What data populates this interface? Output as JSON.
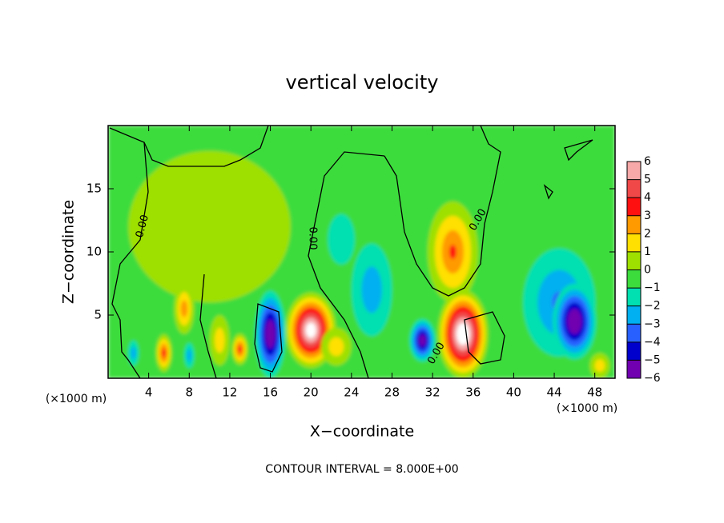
{
  "chart_data": {
    "type": "contour",
    "title": "vertical velocity",
    "x_label": "X−coordinate",
    "y_label": "Z−coordinate",
    "x_unit": "(×1000 m)",
    "y_unit": "(×1000 m)",
    "footer": "CONTOUR INTERVAL = 8.000E+00",
    "contour_labels": [
      "0.00",
      "0.00",
      "0.00",
      "0.00"
    ],
    "xlim": [
      0,
      50
    ],
    "ylim": [
      0,
      20
    ],
    "xticks": [
      4,
      8,
      12,
      16,
      20,
      24,
      28,
      32,
      36,
      40,
      44,
      48
    ],
    "yticks": [
      5,
      10,
      15
    ],
    "background_value": -0.5,
    "peaks": [
      {
        "x": 10,
        "y": 12,
        "width": 16,
        "height": 12,
        "value": 0.8
      },
      {
        "x": 23,
        "y": 11,
        "width": 8,
        "height": 12,
        "value": -1.5
      },
      {
        "x": 44.5,
        "y": 6,
        "width": 10,
        "height": 12,
        "value": -3.5
      },
      {
        "x": 26,
        "y": 7,
        "width": 6,
        "height": 11,
        "value": -3
      },
      {
        "x": 34,
        "y": 10,
        "width": 5,
        "height": 8,
        "value": 3.5
      },
      {
        "x": 35,
        "y": 3.5,
        "width": 5,
        "height": 7,
        "value": 8
      },
      {
        "x": 20,
        "y": 3.8,
        "width": 5,
        "height": 6,
        "value": 7.5
      },
      {
        "x": 16,
        "y": 3.5,
        "width": 3.5,
        "height": 8,
        "value": -7
      },
      {
        "x": 46,
        "y": 4.5,
        "width": 5,
        "height": 7,
        "value": -7
      },
      {
        "x": 31,
        "y": 3,
        "width": 3,
        "height": 4,
        "value": -6.5
      },
      {
        "x": 7.5,
        "y": 5.5,
        "width": 2,
        "height": 4,
        "value": 3
      },
      {
        "x": 5.5,
        "y": 2,
        "width": 1.6,
        "height": 3,
        "value": 4
      },
      {
        "x": 2.5,
        "y": 2,
        "width": 1.6,
        "height": 3,
        "value": -3
      },
      {
        "x": 13,
        "y": 2.3,
        "width": 1.6,
        "height": 2.5,
        "value": 4
      },
      {
        "x": 8,
        "y": 1.8,
        "width": 1.5,
        "height": 3,
        "value": -3
      },
      {
        "x": 11,
        "y": 3,
        "width": 2,
        "height": 4,
        "value": 2
      },
      {
        "x": 22.5,
        "y": 2.5,
        "width": 3,
        "height": 3,
        "value": 2
      },
      {
        "x": 48.5,
        "y": 1,
        "width": 2,
        "height": 2,
        "value": 2
      }
    ],
    "levels": [
      {
        "value": 6,
        "label": "6"
      },
      {
        "value": 5,
        "label": "5"
      },
      {
        "value": 4,
        "label": "4"
      },
      {
        "value": 3,
        "label": "3"
      },
      {
        "value": 2,
        "label": "2"
      },
      {
        "value": 1,
        "label": "1"
      },
      {
        "value": 0,
        "label": "0"
      },
      {
        "value": -1,
        "label": "−1"
      },
      {
        "value": -2,
        "label": "−2"
      },
      {
        "value": -3,
        "label": "−3"
      },
      {
        "value": -4,
        "label": "−4"
      },
      {
        "value": -5,
        "label": "−5"
      },
      {
        "value": -6,
        "label": "−6"
      }
    ],
    "colors": [
      "#f7a8a8",
      "#f04848",
      "#ff1010",
      "#ff9a00",
      "#ffe000",
      "#9ee000",
      "#3cdc3c",
      "#00e0b0",
      "#00b0f0",
      "#2860ff",
      "#0000cc",
      "#7000b0"
    ],
    "over_color": "#ffffff"
  }
}
